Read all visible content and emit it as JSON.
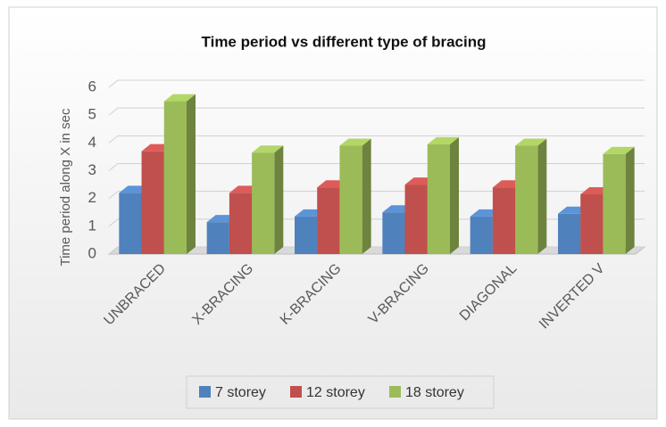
{
  "chart_data": {
    "type": "bar3d",
    "title": "Time period vs different type of bracing",
    "ylabel": "Time period along X in sec",
    "categories": [
      "UNBRACED",
      "X-BRACING",
      "K-BRACING",
      "V-BRACING",
      "DIAGONAL",
      "INVERTED V"
    ],
    "series": [
      {
        "name": "7 storey",
        "color": "#4f81bd",
        "values": [
          2.2,
          1.15,
          1.35,
          1.5,
          1.35,
          1.45
        ]
      },
      {
        "name": "12 storey",
        "color": "#c0504d",
        "values": [
          3.7,
          2.2,
          2.4,
          2.5,
          2.4,
          2.15
        ]
      },
      {
        "name": "18 storey",
        "color": "#9bbb59",
        "values": [
          5.5,
          3.65,
          3.9,
          3.95,
          3.9,
          3.6
        ]
      }
    ],
    "ylim": [
      0,
      6
    ],
    "yticks": [
      0,
      1,
      2,
      3,
      4,
      5,
      6
    ],
    "grid": true,
    "legend": "bottom"
  }
}
